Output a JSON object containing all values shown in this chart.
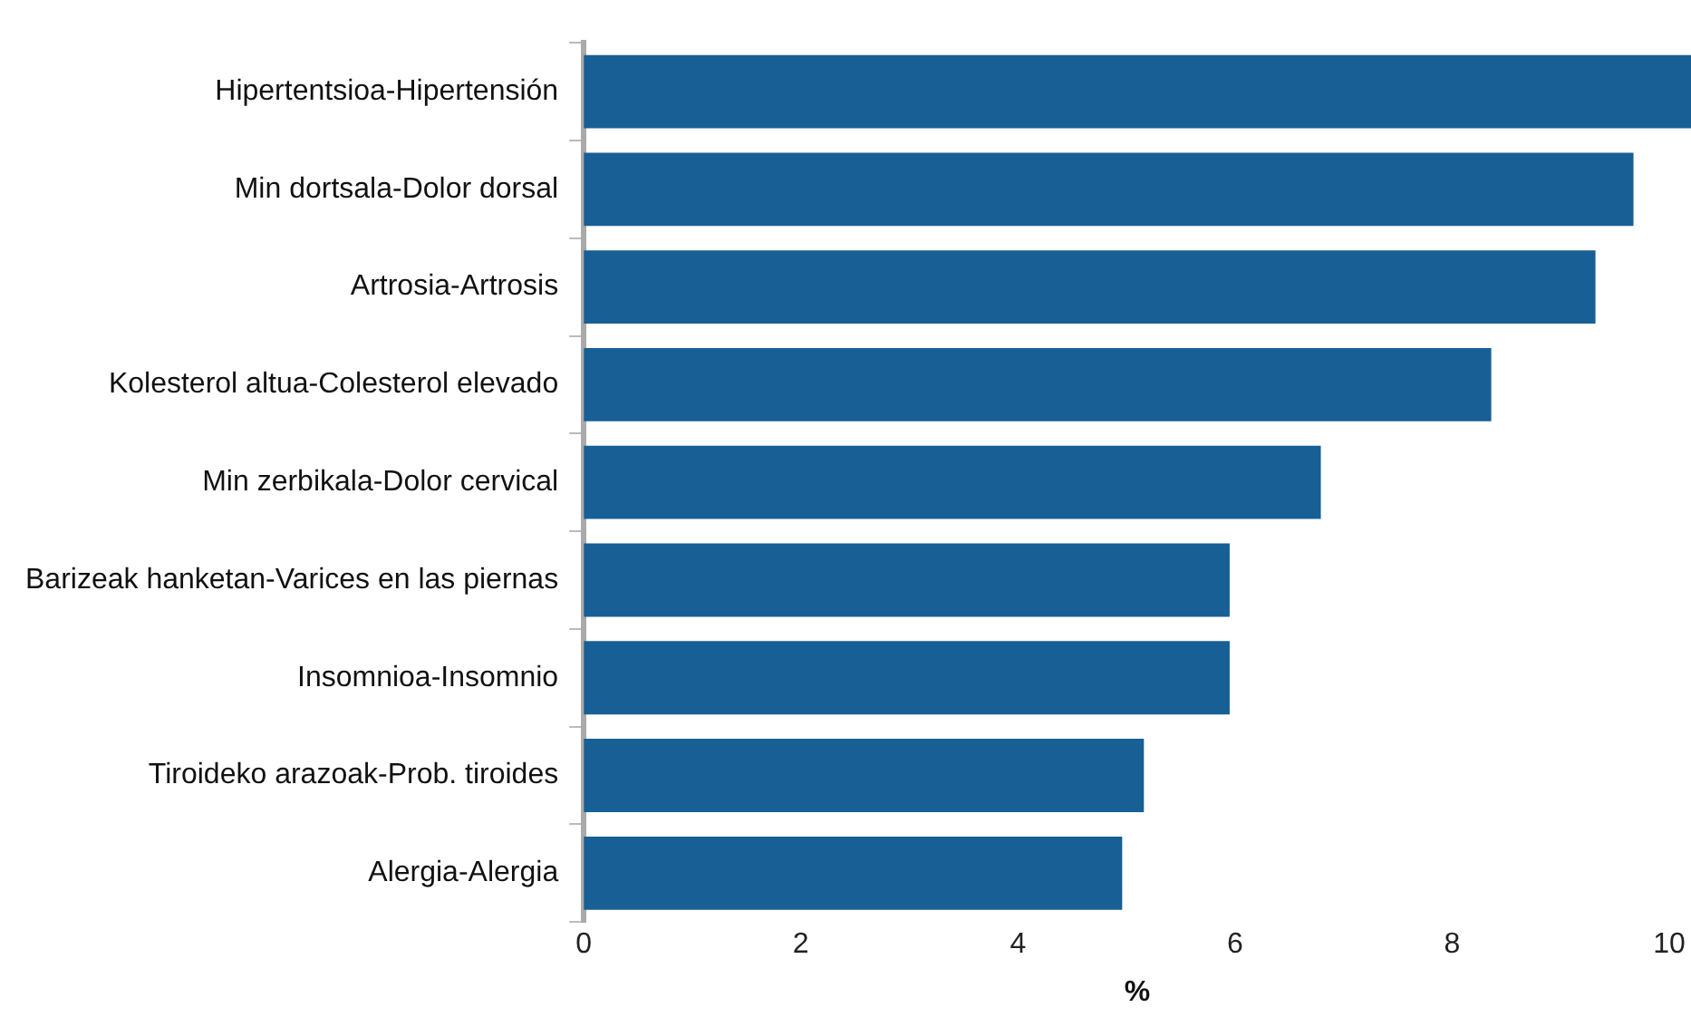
{
  "chart_data": {
    "type": "bar",
    "orientation": "horizontal",
    "xlabel": "%",
    "categories": [
      "Hipertentsioa-Hipertensión",
      "Min dortsala-Dolor dorsal",
      "Artrosia-Artrosis",
      "Kolesterol altua-Colesterol elevado",
      "Min zerbikala-Dolor cervical",
      "Barizeak hanketan-Varices en las piernas",
      "Insomnioa-Insomnio",
      "Tiroideko arazoak-Prob. tiroides",
      "Alergia-Alergia"
    ],
    "values": [
      10.2,
      9.67,
      9.32,
      8.36,
      6.79,
      5.95,
      5.95,
      5.16,
      4.96
    ],
    "color": "#175f94",
    "xlim": [
      0,
      10.2
    ],
    "xticks": [
      0,
      2,
      4,
      6,
      8,
      10
    ],
    "grid": false,
    "legend": false
  }
}
